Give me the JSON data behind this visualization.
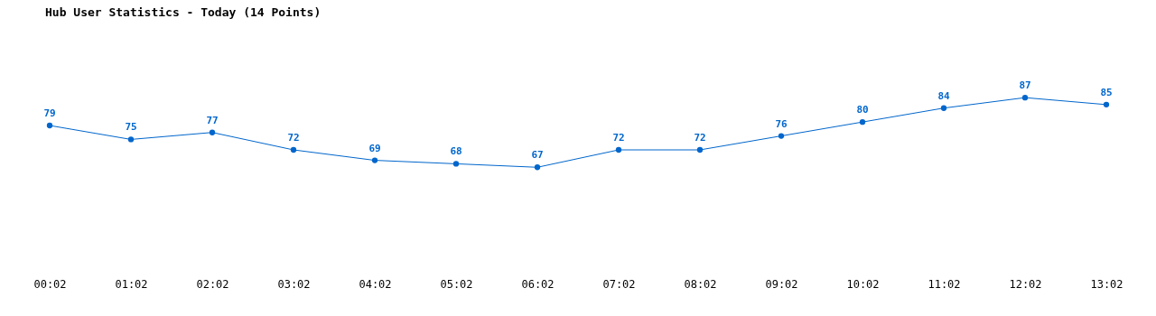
{
  "chart_data": {
    "type": "line",
    "title": "Hub User Statistics - Today (14 Points)",
    "categories": [
      "00:02",
      "01:02",
      "02:02",
      "03:02",
      "04:02",
      "05:02",
      "06:02",
      "07:02",
      "08:02",
      "09:02",
      "10:02",
      "11:02",
      "12:02",
      "13:02"
    ],
    "series": [
      {
        "color": "#0066cc",
        "values": [
          79,
          75,
          77,
          72,
          69,
          68,
          67,
          72,
          72,
          76,
          80,
          84,
          87,
          85
        ]
      }
    ],
    "data_labels": true,
    "marker": "circle",
    "line_style": "solid",
    "grid": false
  }
}
